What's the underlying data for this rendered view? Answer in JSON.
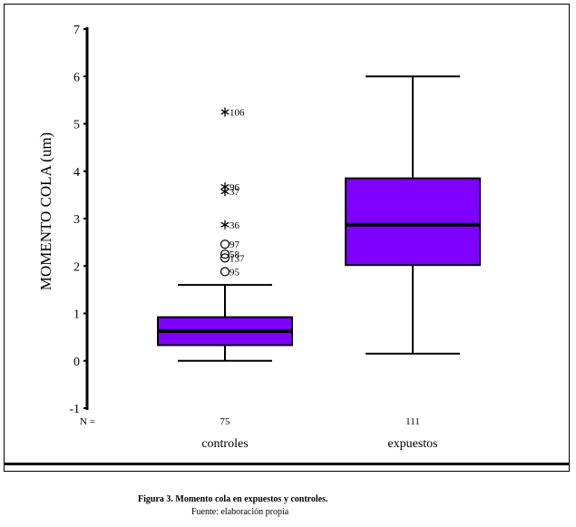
{
  "chart_data": {
    "type": "boxplot",
    "ylabel": "MOMENTO COLA (um)",
    "ylim": [
      -1,
      7
    ],
    "yticks": [
      "-1",
      "0",
      "1",
      "2",
      "3",
      "4",
      "5",
      "6",
      "7"
    ],
    "n_label": "N =",
    "box_color": "#7f00ff",
    "groups": [
      {
        "name": "controles",
        "n": "75",
        "whisker_low": 0.0,
        "q1": 0.33,
        "median": 0.63,
        "q3": 0.92,
        "whisker_high": 1.6,
        "outliers": [
          {
            "label": "95",
            "y": 1.88,
            "marker": "circle"
          },
          {
            "label": "137",
            "y": 2.17,
            "marker": "circle"
          },
          {
            "label": "58",
            "y": 2.25,
            "marker": "circle"
          },
          {
            "label": "97",
            "y": 2.46,
            "marker": "circle"
          }
        ],
        "extremes": [
          {
            "label": "36",
            "y": 2.87,
            "marker": "star"
          },
          {
            "label": "37",
            "y": 3.57,
            "marker": "star"
          },
          {
            "label": "96",
            "y": 3.67,
            "marker": "star"
          },
          {
            "label": "106",
            "y": 5.25,
            "marker": "star"
          }
        ]
      },
      {
        "name": "expuestos",
        "n": "111",
        "whisker_low": 0.15,
        "q1": 2.02,
        "median": 2.87,
        "q3": 3.85,
        "whisker_high": 6.0,
        "outliers": [],
        "extremes": []
      }
    ]
  },
  "caption": {
    "title": "Figura 3.  Momento cola en expuestos y controles.",
    "source": "Fuente: elaboración propia"
  }
}
